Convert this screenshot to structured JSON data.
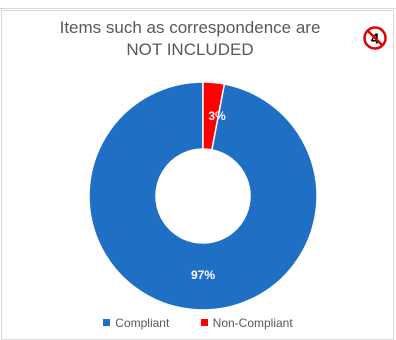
{
  "chart_data": {
    "type": "pie",
    "variant": "doughnut",
    "title": "Items such as correspondence are NOT INCLUDED",
    "title_lines": [
      "Items such as correspondence are",
      "NOT INCLUDED"
    ],
    "categories": [
      "Compliant",
      "Non-Compliant"
    ],
    "values": [
      97,
      3
    ],
    "data_labels": [
      "97%",
      "3%"
    ],
    "colors": [
      "#1f6fc5",
      "#ff0000"
    ],
    "legend_position": "bottom"
  },
  "badge": {
    "label": "4",
    "icon": "no-symbol-icon",
    "color": "#e00000"
  }
}
